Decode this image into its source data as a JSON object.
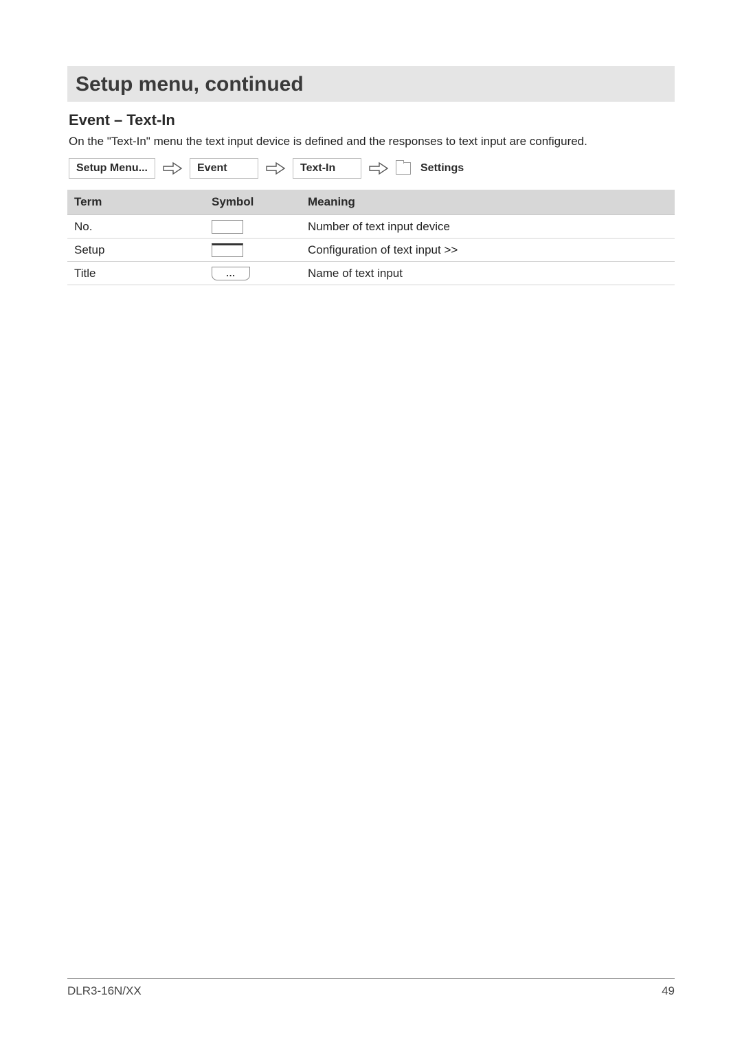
{
  "header": {
    "title": "Setup menu, continued"
  },
  "section": {
    "heading": "Event – Text-In",
    "description": "On the \"Text-In\" menu the text input device is defined and the responses to text input are configured."
  },
  "breadcrumb": {
    "items": [
      "Setup Menu...",
      "Event",
      "Text-In"
    ],
    "final_label": "Settings"
  },
  "table": {
    "columns": [
      "Term",
      "Symbol",
      "Meaning"
    ],
    "rows": [
      {
        "term": "No.",
        "symbol_type": "box",
        "symbol_text": "",
        "meaning": "Number of text input device"
      },
      {
        "term": "Setup",
        "symbol_type": "box-top",
        "symbol_text": "",
        "meaning": "Configuration of text input >>"
      },
      {
        "term": "Title",
        "symbol_type": "pill",
        "symbol_text": "...",
        "meaning": "Name of text input"
      }
    ]
  },
  "footer": {
    "model": "DLR3-16N/XX",
    "page_number": "49"
  },
  "colors": {
    "title_bg": "#e5e5e5",
    "table_header_bg": "#d7d7d7",
    "border": "#bdbdbd",
    "text": "#2a2a2a"
  }
}
